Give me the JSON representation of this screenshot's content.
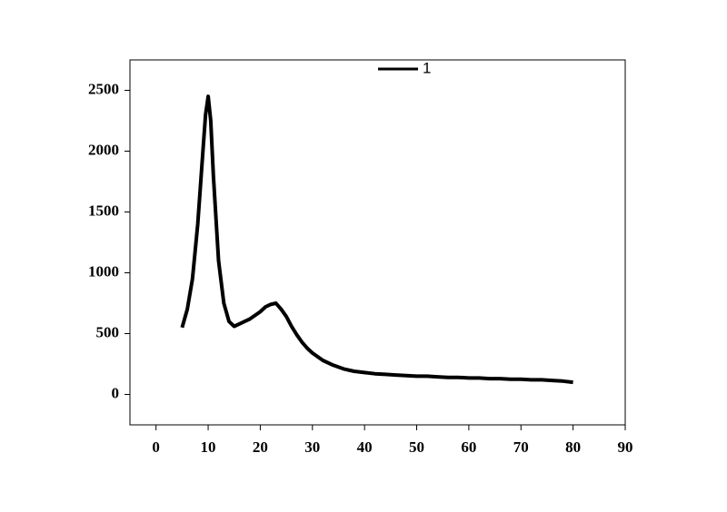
{
  "chart_data": {
    "type": "line",
    "x": [
      5,
      6,
      7,
      8,
      9,
      9.5,
      10,
      10.5,
      11,
      12,
      13,
      14,
      15,
      16,
      17,
      18,
      19,
      20,
      21,
      22,
      23,
      24,
      25,
      26,
      27,
      28,
      29,
      30,
      32,
      34,
      36,
      38,
      40,
      42,
      44,
      46,
      48,
      50,
      52,
      54,
      56,
      58,
      60,
      62,
      64,
      66,
      68,
      70,
      72,
      74,
      76,
      78,
      80
    ],
    "series": [
      {
        "name": "1",
        "color": "#000000",
        "values": [
          550,
          700,
          950,
          1400,
          2000,
          2300,
          2450,
          2250,
          1800,
          1100,
          750,
          600,
          560,
          580,
          600,
          620,
          650,
          680,
          720,
          740,
          750,
          700,
          640,
          560,
          490,
          430,
          380,
          340,
          280,
          240,
          210,
          190,
          180,
          170,
          165,
          160,
          155,
          150,
          150,
          145,
          140,
          140,
          135,
          135,
          130,
          130,
          125,
          125,
          120,
          120,
          115,
          110,
          100
        ]
      }
    ],
    "xlim": [
      -5,
      90
    ],
    "xticks": [
      0,
      10,
      20,
      30,
      40,
      50,
      60,
      70,
      80,
      90
    ],
    "ylim": [
      -250,
      2750
    ],
    "yticks": [
      0,
      500,
      1000,
      1500,
      2000,
      2500
    ],
    "grid": false,
    "legend": "top"
  }
}
